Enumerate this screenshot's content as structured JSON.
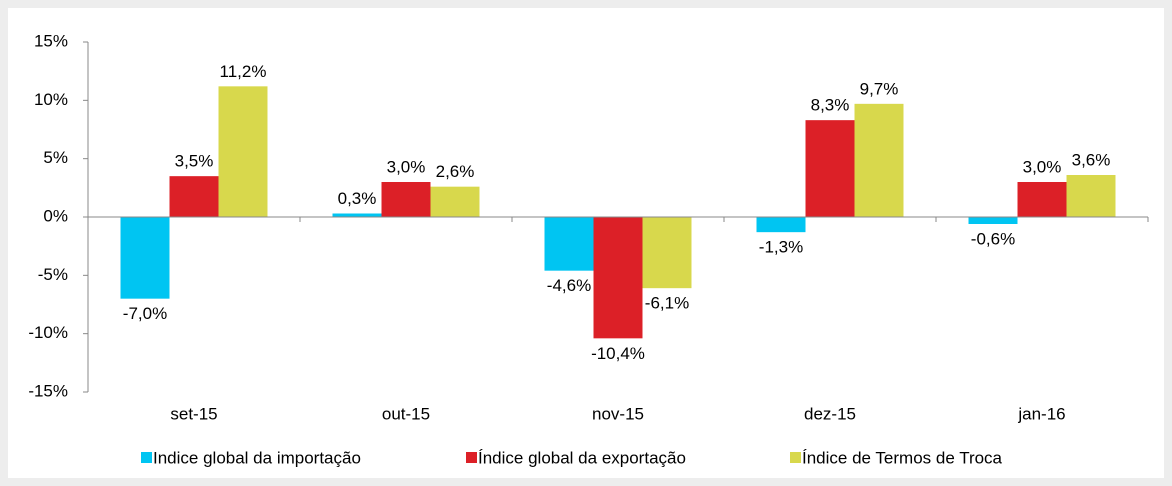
{
  "chart_data": {
    "type": "bar",
    "categories": [
      "set-15",
      "out-15",
      "nov-15",
      "dez-15",
      "jan-16"
    ],
    "series": [
      {
        "name": "Indice global da importação",
        "color": "#00c5f2",
        "values": [
          -7.0,
          0.3,
          -4.6,
          -1.3,
          -0.6
        ],
        "value_labels": [
          "-7,0%",
          "0,3%",
          "-4,6%",
          "-1,3%",
          "-0,6%"
        ]
      },
      {
        "name": "Índice global da exportação",
        "color": "#dc2027",
        "values": [
          3.5,
          3.0,
          -10.4,
          8.3,
          3.0
        ],
        "value_labels": [
          "3,5%",
          "3,0%",
          "-10,4%",
          "8,3%",
          "3,0%"
        ]
      },
      {
        "name": "Índice de Termos de Troca",
        "color": "#d8d84c",
        "values": [
          11.2,
          2.6,
          -6.1,
          9.7,
          3.6
        ],
        "value_labels": [
          "11,2%",
          "2,6%",
          "-6,1%",
          "9,7%",
          "3,6%"
        ]
      }
    ],
    "ylim": [
      -15,
      15
    ],
    "yticks": [
      {
        "value": -15,
        "label": "-15%"
      },
      {
        "value": -10,
        "label": "-10%"
      },
      {
        "value": -5,
        "label": "-5%"
      },
      {
        "value": 0,
        "label": "0%"
      },
      {
        "value": 5,
        "label": "5%"
      },
      {
        "value": 10,
        "label": "10%"
      },
      {
        "value": 15,
        "label": "15%"
      }
    ],
    "grid": false
  }
}
